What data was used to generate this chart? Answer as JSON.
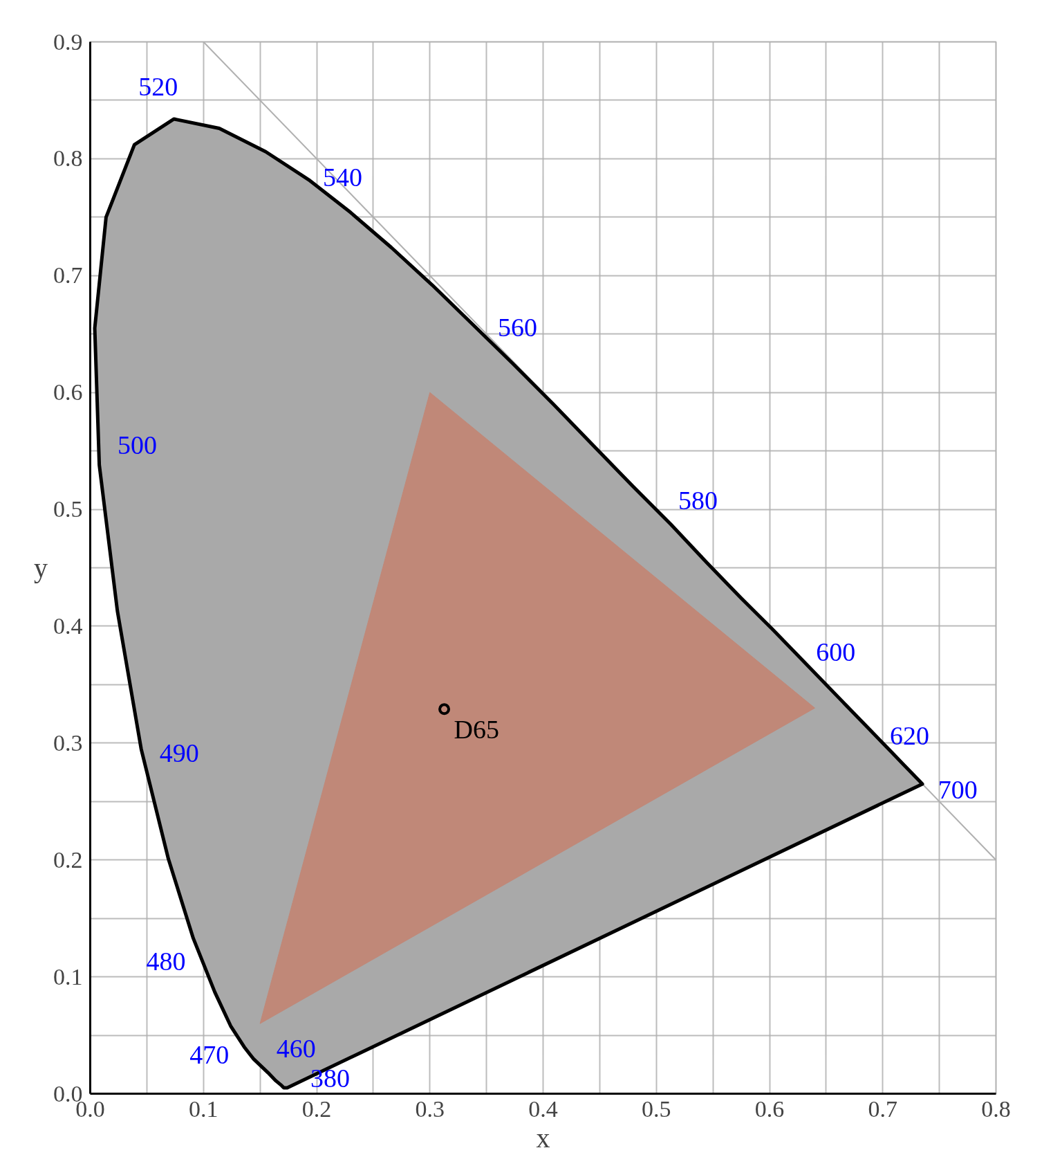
{
  "chart_data": {
    "type": "line",
    "xlabel": "x",
    "ylabel": "y",
    "xlim": [
      0,
      0.8
    ],
    "ylim": [
      0,
      0.9
    ],
    "xticks": [
      {
        "value": 0.0,
        "label": "0.0"
      },
      {
        "value": 0.05,
        "label": null
      },
      0.1,
      {
        "value": 0.15,
        "label": null
      },
      0.2,
      {
        "value": 0.25,
        "label": null
      },
      0.3,
      {
        "value": 0.35,
        "label": null
      },
      0.4,
      {
        "value": 0.45,
        "label": null
      },
      0.5,
      {
        "value": 0.55,
        "label": null
      },
      0.6,
      {
        "value": 0.65,
        "label": null
      },
      0.7,
      {
        "value": 0.75,
        "label": null
      },
      0.8
    ],
    "yticks": [
      {
        "value": 0.0,
        "label": "0.0"
      },
      {
        "value": 0.05,
        "label": null
      },
      0.1,
      {
        "value": 0.15,
        "label": null
      },
      0.2,
      {
        "value": 0.25,
        "label": null
      },
      0.3,
      {
        "value": 0.35,
        "label": null
      },
      0.4,
      {
        "value": 0.45,
        "label": null
      },
      0.5,
      {
        "value": 0.55,
        "label": null
      },
      0.6,
      {
        "value": 0.65,
        "label": null
      },
      0.7,
      {
        "value": 0.75,
        "label": null
      },
      0.8,
      {
        "value": 0.85,
        "label": null
      },
      0.9
    ],
    "grid": true,
    "line_style": "solid",
    "series": [
      {
        "color": "#b0b0b0",
        "x": [
          0.1,
          0.8
        ],
        "values": [
          0.9,
          0.2
        ]
      },
      {
        "type": "area",
        "color": "#a9a9a9",
        "x": [
          0.174,
          0.173,
          0.171,
          0.169,
          0.164,
          0.157,
          0.144,
          0.136,
          0.124,
          0.11,
          0.091,
          0.069,
          0.045,
          0.024,
          0.008,
          0.004,
          0.014,
          0.039,
          0.074,
          0.114,
          0.155,
          0.193,
          0.23,
          0.266,
          0.302,
          0.337,
          0.373,
          0.409,
          0.444,
          0.479,
          0.513,
          0.545,
          0.575,
          0.603,
          0.627,
          0.666,
          0.692,
          0.708,
          0.719,
          0.726,
          0.73,
          0.733,
          0.735,
          0.174
        ],
        "values": [
          0.005,
          0.005,
          0.005,
          0.007,
          0.011,
          0.018,
          0.03,
          0.04,
          0.058,
          0.087,
          0.133,
          0.201,
          0.295,
          0.413,
          0.538,
          0.655,
          0.75,
          0.812,
          0.834,
          0.826,
          0.806,
          0.782,
          0.754,
          0.724,
          0.692,
          0.659,
          0.625,
          0.59,
          0.555,
          0.52,
          0.487,
          0.454,
          0.424,
          0.397,
          0.373,
          0.334,
          0.308,
          0.292,
          0.281,
          0.274,
          0.27,
          0.267,
          0.265,
          0.005
        ]
      },
      {
        "type": "area",
        "color": "#c08878",
        "x": [
          0.64,
          0.3,
          0.15,
          0.64
        ],
        "values": [
          0.33,
          0.6,
          0.06,
          0.33
        ]
      },
      {
        "type": "scatter",
        "name": "D65",
        "marker": "circle",
        "color": "#000000",
        "x": [
          0.3127
        ],
        "values": [
          0.329
        ]
      }
    ],
    "annotations": [
      {
        "text": "380",
        "x": 0.174,
        "y": 0.005
      },
      {
        "text": "460",
        "x": 0.144,
        "y": 0.03
      },
      {
        "text": "470",
        "x": 0.124,
        "y": 0.058
      },
      {
        "text": "480",
        "x": 0.091,
        "y": 0.133
      },
      {
        "text": "490",
        "x": 0.045,
        "y": 0.295
      },
      {
        "text": "500",
        "x": 0.008,
        "y": 0.538
      },
      {
        "text": "520",
        "x": 0.074,
        "y": 0.834
      },
      {
        "text": "540",
        "x": 0.23,
        "y": 0.754
      },
      {
        "text": "560",
        "x": 0.373,
        "y": 0.625
      },
      {
        "text": "580",
        "x": 0.513,
        "y": 0.487
      },
      {
        "text": "600",
        "x": 0.627,
        "y": 0.373
      },
      {
        "text": "620",
        "x": 0.692,
        "y": 0.308
      },
      {
        "text": "700",
        "x": 0.735,
        "y": 0.265
      }
    ]
  }
}
